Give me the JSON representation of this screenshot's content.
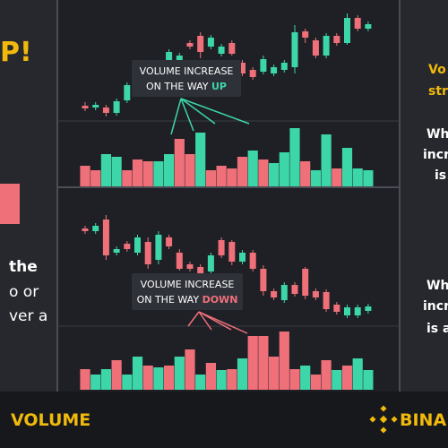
{
  "left": {
    "headline": "P!",
    "lines": [
      "the",
      "o or",
      "ver a"
    ]
  },
  "top_label": {
    "line1": "VOLUME INCREASE",
    "line2_prefix": "ON THE WAY",
    "line2_highlight": "UP"
  },
  "bottom_label": {
    "line1": "VOLUME INCREASE",
    "line2_prefix": "ON THE WAY",
    "line2_highlight": "DOWN"
  },
  "right": {
    "yellow_lines": [
      "Vo",
      "str"
    ],
    "block1": [
      "Wh",
      "incr",
      "is"
    ],
    "block2": [
      "Wh",
      "incr",
      "is a"
    ]
  },
  "footer": {
    "title": "VOLUME",
    "brand": "BINA"
  }
}
